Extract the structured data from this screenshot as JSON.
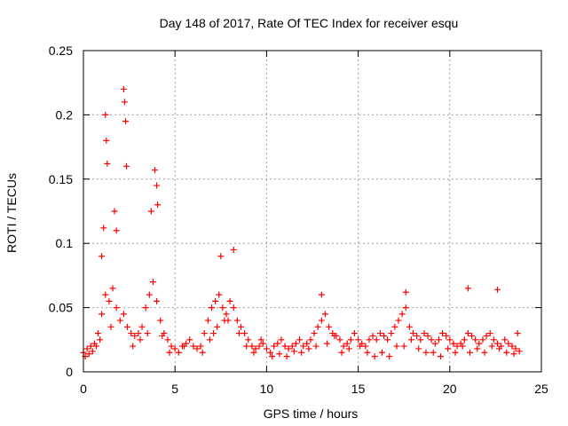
{
  "chart_data": {
    "type": "scatter",
    "title": "Day 148 of 2017, Rate Of TEC Index for receiver esqu",
    "xlabel": "GPS time / hours",
    "ylabel": "ROTI / TECUs",
    "xlim": [
      0,
      25
    ],
    "ylim": [
      0,
      0.25
    ],
    "xticks": [
      0,
      5,
      10,
      15,
      20,
      25
    ],
    "yticks": [
      0,
      0.05,
      0.1,
      0.15,
      0.2,
      0.25
    ],
    "xtick_labels": [
      "0",
      "5",
      "10",
      "15",
      "20",
      "25"
    ],
    "ytick_labels": [
      "0",
      "0.05",
      "0.1",
      "0.15",
      "0.2",
      "0.25"
    ],
    "grid": true,
    "marker": "+",
    "color": "#ff0000",
    "series": [
      {
        "name": "ROTI",
        "x": [
          0.0,
          0.2,
          0.4,
          0.6,
          0.8,
          1.0,
          1.2,
          1.4,
          1.6,
          1.8,
          2.0,
          2.2,
          2.4,
          2.6,
          2.8,
          3.0,
          3.2,
          3.4,
          3.6,
          3.8,
          4.0,
          4.2,
          4.4,
          4.6,
          4.8,
          5.0,
          5.2,
          5.4,
          5.6,
          5.8,
          6.0,
          6.2,
          6.4,
          6.6,
          6.8,
          7.0,
          7.2,
          7.4,
          7.6,
          7.8,
          8.0,
          8.2,
          8.4,
          8.6,
          8.8,
          9.0,
          9.2,
          9.4,
          9.6,
          9.8,
          10.0,
          10.2,
          10.4,
          10.6,
          10.8,
          11.0,
          11.2,
          11.4,
          11.6,
          11.8,
          12.0,
          12.2,
          12.4,
          12.6,
          12.8,
          13.0,
          13.2,
          13.4,
          13.6,
          13.8,
          14.0,
          14.2,
          14.4,
          14.6,
          14.8,
          15.0,
          15.2,
          15.4,
          15.6,
          15.8,
          16.0,
          16.2,
          16.4,
          16.6,
          16.8,
          17.0,
          17.2,
          17.4,
          17.6,
          17.8,
          18.0,
          18.2,
          18.4,
          18.6,
          18.8,
          19.0,
          19.2,
          19.4,
          19.6,
          19.8,
          20.0,
          20.2,
          20.4,
          20.6,
          20.8,
          21.0,
          21.2,
          21.4,
          21.6,
          21.8,
          22.0,
          22.2,
          22.4,
          22.6,
          22.8,
          23.0,
          23.2,
          23.4,
          23.6,
          23.8,
          1.2,
          1.25,
          1.3,
          2.2,
          2.25,
          2.3,
          2.35,
          3.9,
          4.0,
          4.05,
          3.7,
          1.7,
          1.8,
          1.0,
          1.1,
          7.5,
          8.2,
          13.0,
          17.6,
          21.0,
          22.6,
          23.7,
          0.1,
          0.3,
          0.5,
          0.7,
          0.9,
          1.5,
          2.7,
          3.1,
          3.5,
          4.3,
          4.7,
          5.5,
          6.5,
          6.9,
          7.1,
          7.3,
          7.7,
          7.9,
          8.5,
          8.9,
          9.3,
          9.7,
          10.3,
          10.7,
          11.1,
          11.5,
          11.9,
          12.3,
          12.7,
          13.3,
          13.7,
          14.1,
          14.5,
          15.1,
          15.5,
          15.9,
          16.3,
          16.7,
          17.1,
          17.5,
          17.9,
          18.3,
          18.7,
          19.1,
          19.5,
          19.9,
          20.3,
          20.7,
          21.1,
          21.5,
          21.9,
          22.3,
          22.7,
          23.1,
          23.5
        ],
        "y": [
          0.015,
          0.018,
          0.02,
          0.022,
          0.03,
          0.045,
          0.06,
          0.055,
          0.065,
          0.05,
          0.04,
          0.045,
          0.035,
          0.03,
          0.028,
          0.03,
          0.035,
          0.05,
          0.06,
          0.07,
          0.055,
          0.04,
          0.03,
          0.025,
          0.02,
          0.018,
          0.015,
          0.02,
          0.022,
          0.025,
          0.02,
          0.018,
          0.02,
          0.03,
          0.04,
          0.05,
          0.055,
          0.06,
          0.05,
          0.045,
          0.055,
          0.05,
          0.04,
          0.035,
          0.03,
          0.025,
          0.02,
          0.018,
          0.02,
          0.022,
          0.018,
          0.015,
          0.02,
          0.022,
          0.025,
          0.02,
          0.018,
          0.02,
          0.022,
          0.025,
          0.02,
          0.022,
          0.025,
          0.03,
          0.035,
          0.04,
          0.045,
          0.035,
          0.03,
          0.028,
          0.025,
          0.02,
          0.022,
          0.025,
          0.03,
          0.025,
          0.022,
          0.02,
          0.025,
          0.028,
          0.025,
          0.03,
          0.028,
          0.025,
          0.03,
          0.035,
          0.04,
          0.045,
          0.05,
          0.035,
          0.03,
          0.028,
          0.025,
          0.03,
          0.028,
          0.025,
          0.022,
          0.025,
          0.03,
          0.028,
          0.025,
          0.022,
          0.02,
          0.022,
          0.025,
          0.03,
          0.028,
          0.025,
          0.022,
          0.025,
          0.028,
          0.03,
          0.025,
          0.022,
          0.02,
          0.025,
          0.022,
          0.02,
          0.018,
          0.016,
          0.2,
          0.18,
          0.162,
          0.22,
          0.21,
          0.195,
          0.16,
          0.157,
          0.145,
          0.13,
          0.125,
          0.125,
          0.11,
          0.09,
          0.112,
          0.09,
          0.095,
          0.06,
          0.062,
          0.065,
          0.064,
          0.03,
          0.012,
          0.014,
          0.016,
          0.02,
          0.025,
          0.035,
          0.02,
          0.025,
          0.03,
          0.028,
          0.015,
          0.02,
          0.015,
          0.025,
          0.03,
          0.035,
          0.04,
          0.04,
          0.03,
          0.02,
          0.015,
          0.025,
          0.012,
          0.014,
          0.012,
          0.016,
          0.015,
          0.018,
          0.02,
          0.022,
          0.028,
          0.015,
          0.018,
          0.02,
          0.015,
          0.012,
          0.015,
          0.012,
          0.02,
          0.02,
          0.025,
          0.018,
          0.015,
          0.015,
          0.012,
          0.018,
          0.015,
          0.02,
          0.015,
          0.018,
          0.015,
          0.02,
          0.018,
          0.015,
          0.014
        ]
      }
    ]
  }
}
